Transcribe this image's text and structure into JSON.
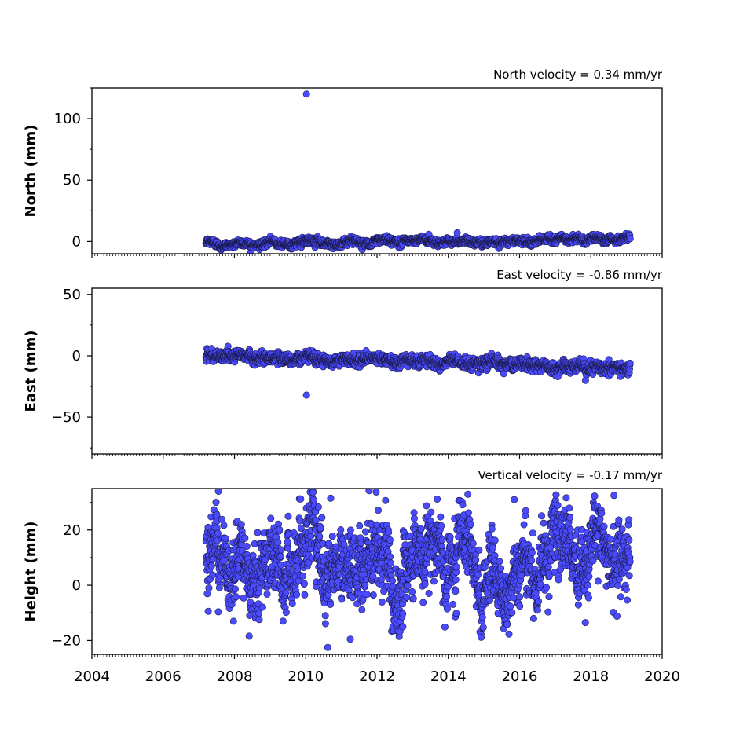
{
  "chart_data": [
    {
      "type": "scatter",
      "title": "North velocity = 0.34 mm/yr",
      "xlabel": "",
      "ylabel": "North (mm)",
      "xlim": [
        2004,
        2020
      ],
      "ylim": [
        -10,
        125
      ],
      "yticks": [
        0,
        50,
        100
      ],
      "x_start": 2007.2,
      "x_end": 2019.1,
      "trend_start": -2.0,
      "trend_end": 2.5,
      "noise_sd": 1.4,
      "marker_color": "#4a4aff",
      "outliers": [
        {
          "x": 2010.02,
          "y": 120
        },
        {
          "x": 2014.25,
          "y": 7
        }
      ]
    },
    {
      "type": "scatter",
      "title": "East velocity = -0.86 mm/yr",
      "xlabel": "",
      "ylabel": "East (mm)",
      "xlim": [
        2004,
        2020
      ],
      "ylim": [
        -80,
        55
      ],
      "yticks": [
        -50,
        0,
        50
      ],
      "x_start": 2007.2,
      "x_end": 2019.1,
      "trend_start": 0.5,
      "trend_end": -10,
      "noise_sd": 2.2,
      "marker_color": "#4a4aff",
      "outliers": [
        {
          "x": 2010.02,
          "y": -32
        },
        {
          "x": 2017.85,
          "y": -20
        }
      ]
    },
    {
      "type": "scatter",
      "title": "Vertical velocity = -0.17 mm/yr",
      "xlabel": "",
      "ylabel": "Height (mm)",
      "xlim": [
        2004,
        2020
      ],
      "ylim": [
        -25,
        35
      ],
      "yticks": [
        -20,
        0,
        20
      ],
      "x_start": 2007.2,
      "x_end": 2019.1,
      "trend_start": 10,
      "trend_end": 8,
      "noise_sd": 6.0,
      "marker_color": "#4a4aff",
      "outliers": [
        {
          "x": 2007.55,
          "y": 34
        },
        {
          "x": 2010.7,
          "y": 31.5
        },
        {
          "x": 2015.85,
          "y": 31
        },
        {
          "x": 2018.65,
          "y": 32.5
        },
        {
          "x": 2010.62,
          "y": -22.5
        },
        {
          "x": 2011.25,
          "y": -19.5
        },
        {
          "x": 2010.55,
          "y": -11
        }
      ]
    }
  ],
  "x_axis": {
    "ticks": [
      2004,
      2006,
      2008,
      2010,
      2012,
      2014,
      2016,
      2018,
      2020
    ],
    "tick_labels": [
      "2004",
      "2006",
      "2008",
      "2010",
      "2012",
      "2014",
      "2016",
      "2018",
      "2020"
    ]
  }
}
